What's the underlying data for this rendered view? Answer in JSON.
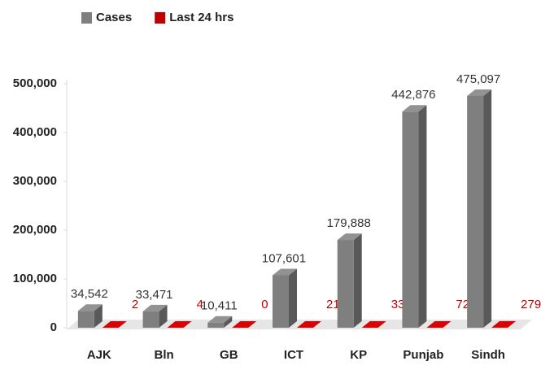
{
  "chart_data": {
    "type": "bar",
    "categories": [
      "AJK",
      "Bln",
      "GB",
      "ICT",
      "KP",
      "Punjab",
      "Sindh"
    ],
    "series": [
      {
        "name": "Cases",
        "color": "#7f7f7f",
        "values": [
          34542,
          33471,
          10411,
          107601,
          179888,
          442876,
          475097
        ],
        "value_labels": [
          "34,542",
          "33,471",
          "10,411",
          "107,601",
          "179,888",
          "442,876",
          "475,097"
        ]
      },
      {
        "name": "Last 24 hrs",
        "color": "#c00000",
        "values": [
          2,
          4,
          0,
          21,
          33,
          72,
          279
        ]
      }
    ],
    "ylim": [
      0,
      500000
    ],
    "yticks": [
      0,
      {
        "value": 100000,
        "label": "100,000"
      },
      {
        "value": 200000,
        "label": "200,000"
      },
      {
        "value": 300000,
        "label": "300,000"
      },
      {
        "value": 400000,
        "label": "400,000"
      },
      {
        "value": 500000,
        "label": "500,000"
      }
    ],
    "grid": false,
    "legend": "top"
  }
}
